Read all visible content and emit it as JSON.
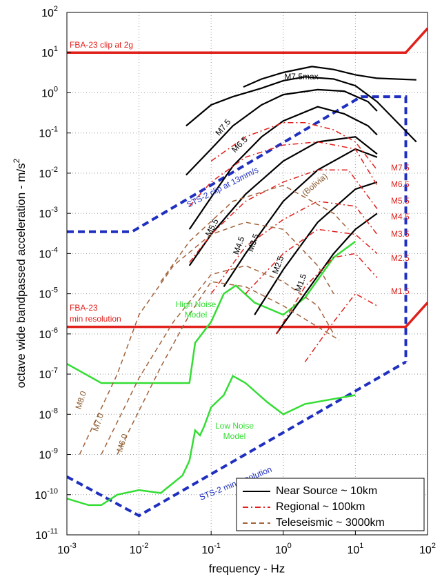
{
  "chart_data": {
    "type": "line",
    "log_x": true,
    "log_y": true,
    "grid": true,
    "legend_position": "lower right",
    "xlabel": "frequency  -  Hz",
    "ylabel": {
      "text": "octave wide bandpassed acceleration  -  m/s",
      "superscript": "2"
    },
    "xlim": [
      0.001,
      100
    ],
    "ylim": [
      1e-11,
      100
    ],
    "xticks": [
      {
        "value": 0.001,
        "label": "10",
        "exponent": "-3"
      },
      {
        "value": 0.01,
        "label": "10",
        "exponent": "-2"
      },
      {
        "value": 0.1,
        "label": "10",
        "exponent": "-1"
      },
      {
        "value": 1,
        "label": "10",
        "exponent": "0"
      },
      {
        "value": 10,
        "label": "10",
        "exponent": "1"
      },
      {
        "value": 100,
        "label": "10",
        "exponent": "2"
      }
    ],
    "yticks": [
      {
        "value": 1e-11,
        "label": "10",
        "exponent": "-11"
      },
      {
        "value": 1e-10,
        "label": "10",
        "exponent": "-10"
      },
      {
        "value": 1e-09,
        "label": "10",
        "exponent": "-9"
      },
      {
        "value": 1e-08,
        "label": "10",
        "exponent": "-8"
      },
      {
        "value": 1e-07,
        "label": "10",
        "exponent": "-7"
      },
      {
        "value": 1e-06,
        "label": "10",
        "exponent": "-6"
      },
      {
        "value": 1e-05,
        "label": "10",
        "exponent": "-5"
      },
      {
        "value": 0.0001,
        "label": "10",
        "exponent": "-4"
      },
      {
        "value": 0.001,
        "label": "10",
        "exponent": "-3"
      },
      {
        "value": 0.01,
        "label": "10",
        "exponent": "-2"
      },
      {
        "value": 0.1,
        "label": "10",
        "exponent": "-1"
      },
      {
        "value": 1,
        "label": "10",
        "exponent": "0"
      },
      {
        "value": 10,
        "label": "10",
        "exponent": "1"
      },
      {
        "value": 100,
        "label": "10",
        "exponent": "2"
      }
    ],
    "groups": [
      {
        "name": "Near Source ~ 10km",
        "color": "#000000",
        "line_style": "solid",
        "curves": [
          {
            "label": "M7.5max",
            "x": [
              0.28,
              0.5,
              1,
              2.5,
              5,
              10,
              20,
              70
            ],
            "y": [
              1.4,
              2.2,
              3.2,
              4.5,
              3.8,
              2.8,
              2.3,
              2.1
            ]
          },
          {
            "label": "M7.5",
            "x": [
              0.045,
              0.1,
              0.2,
              0.5,
              1,
              2,
              5,
              10,
              20,
              70
            ],
            "y": [
              0.15,
              0.5,
              0.8,
              1.3,
              2,
              2.5,
              2.2,
              1.5,
              0.6,
              0.06
            ]
          },
          {
            "label": "M6.5",
            "x": [
              0.045,
              0.1,
              0.2,
              0.5,
              1,
              3,
              7,
              15,
              20
            ],
            "y": [
              0.009,
              0.04,
              0.15,
              0.5,
              0.9,
              1.2,
              1.1,
              0.6,
              0.35
            ]
          },
          {
            "label": "M5.5",
            "x": [
              0.05,
              0.1,
              0.2,
              0.5,
              1,
              3,
              7,
              15,
              20
            ],
            "y": [
              0.0004,
              0.0025,
              0.015,
              0.08,
              0.2,
              0.45,
              0.3,
              0.15,
              0.09
            ]
          },
          {
            "label": "M4.5",
            "x": [
              0.05,
              0.1,
              0.3,
              1,
              3,
              10,
              20
            ],
            "y": [
              5e-05,
              0.0003,
              0.003,
              0.02,
              0.06,
              0.08,
              0.03
            ]
          },
          {
            "label": "M3.5",
            "x": [
              0.15,
              0.3,
              1,
              3,
              10,
              20
            ],
            "y": [
              1.5e-05,
              0.0001,
              0.002,
              0.012,
              0.04,
              0.025
            ]
          },
          {
            "label": "M2.5",
            "x": [
              0.4,
              1,
              3,
              10,
              20
            ],
            "y": [
              3e-06,
              4e-05,
              0.0006,
              0.004,
              0.006
            ]
          },
          {
            "label": "M1.5",
            "x": [
              0.8,
              2,
              5,
              10,
              20
            ],
            "y": [
              1e-06,
              1e-05,
              0.0001,
              0.0004,
              0.001
            ]
          }
        ]
      },
      {
        "name": "Regional ~ 100km",
        "color": "#e0201b",
        "line_style": "dash-dot",
        "curves": [
          {
            "label": "M7.5",
            "x": [
              0.1,
              0.3,
              1,
              2,
              5,
              10,
              20
            ],
            "y": [
              0.02,
              0.08,
              0.18,
              0.18,
              0.12,
              0.06,
              0.012
            ]
          },
          {
            "label": "M6.5",
            "x": [
              0.05,
              0.1,
              0.3,
              1,
              3,
              10,
              20
            ],
            "y": [
              0.0015,
              0.006,
              0.025,
              0.05,
              0.06,
              0.04,
              0.005
            ]
          },
          {
            "label": "M5.5",
            "x": [
              0.05,
              0.1,
              0.3,
              1,
              3,
              8,
              20
            ],
            "y": [
              6e-05,
              0.0003,
              0.002,
              0.006,
              0.012,
              0.012,
              0.0013
            ]
          },
          {
            "label": "M4.5",
            "x": [
              0.1,
              0.3,
              1,
              3,
              10,
              20
            ],
            "y": [
              1e-05,
              0.00015,
              0.0007,
              0.002,
              0.0015,
              0.0003
            ]
          },
          {
            "label": "M3.5",
            "x": [
              0.3,
              1,
              3,
              10,
              20
            ],
            "y": [
              1e-05,
              0.0001,
              0.0004,
              0.0003,
              0.0001
            ]
          },
          {
            "label": "M2.5",
            "x": [
              0.8,
              2,
              5,
              10,
              20
            ],
            "y": [
              1e-06,
              1.5e-05,
              8e-05,
              0.0001,
              2.5e-05
            ]
          },
          {
            "label": "M1.5",
            "x": [
              2,
              5,
              10,
              20
            ],
            "y": [
              2e-07,
              2e-06,
              1e-05,
              5e-06
            ]
          }
        ]
      },
      {
        "name": "Teleseismic ~ 3000km",
        "color": "#a0623a",
        "line_style": "dashed",
        "curves": [
          {
            "label": "M8.0",
            "x": [
              0.0015,
              0.005,
              0.01,
              0.03,
              0.1,
              0.3,
              1,
              3,
              5
            ],
            "y": [
              1e-09,
              1e-07,
              3e-06,
              5e-05,
              0.0003,
              0.0006,
              0.0004,
              5e-05,
              1e-05
            ]
          },
          {
            "label": "M7.0",
            "x": [
              0.003,
              0.01,
              0.03,
              0.1,
              0.3,
              1,
              3,
              5
            ],
            "y": [
              1e-09,
              8e-08,
              2e-06,
              3e-05,
              5e-05,
              2e-05,
              5e-06,
              1e-06
            ]
          },
          {
            "label": "M6.0",
            "x": [
              0.005,
              0.02,
              0.05,
              0.1,
              0.3,
              1,
              3,
              6
            ],
            "y": [
              1e-09,
              1.5e-07,
              3e-06,
              2e-05,
              1.5e-05,
              5e-06,
              1.5e-06,
              7e-07
            ]
          },
          {
            "label": "(Bolivia)",
            "x": [
              0.02,
              0.05,
              0.2,
              1,
              2,
              5,
              8
            ],
            "y": [
              2e-05,
              0.0002,
              0.002,
              0.005,
              0.0025,
              0.001,
              0.0004
            ]
          }
        ]
      }
    ],
    "reference_lines": [
      {
        "label": [
          "FBA-23 clip at 2g"
        ],
        "color": "#e0201b",
        "line_style": "solid",
        "x": [
          0.001,
          50,
          100
        ],
        "y": [
          10,
          10,
          40
        ]
      },
      {
        "label": [
          "FBA-23",
          "min resolution"
        ],
        "color": "#e0201b",
        "line_style": "solid",
        "x": [
          0.001,
          50,
          100
        ],
        "y": [
          1.5e-06,
          1.5e-06,
          6e-06
        ]
      },
      {
        "label": [
          "STS-2 clip at 13mm/s"
        ],
        "color": "#1f2fc0",
        "line_style": "dashed",
        "x": [
          0.001,
          0.008,
          12,
          50,
          50
        ],
        "y": [
          0.00035,
          0.00035,
          0.8,
          0.8,
          2e-07
        ]
      },
      {
        "label": [
          "STS-2 min resolution"
        ],
        "color": "#1f2fc0",
        "line_style": "dashed",
        "x": [
          0.001,
          0.01,
          50
        ],
        "y": [
          2.8e-10,
          3e-11,
          2e-07
        ]
      },
      {
        "label": [
          "High Noise",
          "Model"
        ],
        "color": "#33dd33",
        "line_style": "solid",
        "x": [
          0.001,
          0.003,
          0.05,
          0.06,
          0.1,
          0.15,
          0.22,
          0.4,
          1,
          2,
          5,
          10
        ],
        "y": [
          1.8e-07,
          6e-08,
          6e-08,
          6e-07,
          2e-06,
          1e-05,
          1.6e-05,
          6e-06,
          3e-06,
          8e-06,
          8e-05,
          0.0002
        ]
      },
      {
        "label": [
          "Low Noise",
          "Model"
        ],
        "color": "#33dd33",
        "line_style": "solid",
        "x": [
          0.001,
          0.002,
          0.003,
          0.005,
          0.01,
          0.02,
          0.04,
          0.05,
          0.06,
          0.07,
          0.08,
          0.1,
          0.15,
          0.2,
          0.3,
          0.6,
          1,
          2,
          10
        ],
        "y": [
          8e-11,
          5.5e-11,
          5.5e-11,
          1e-10,
          1.3e-10,
          1.1e-10,
          3e-10,
          7e-10,
          4e-09,
          3e-09,
          5e-09,
          1.5e-08,
          3e-08,
          9e-08,
          6e-08,
          2e-08,
          1e-08,
          1.8e-08,
          3e-08
        ]
      }
    ]
  }
}
